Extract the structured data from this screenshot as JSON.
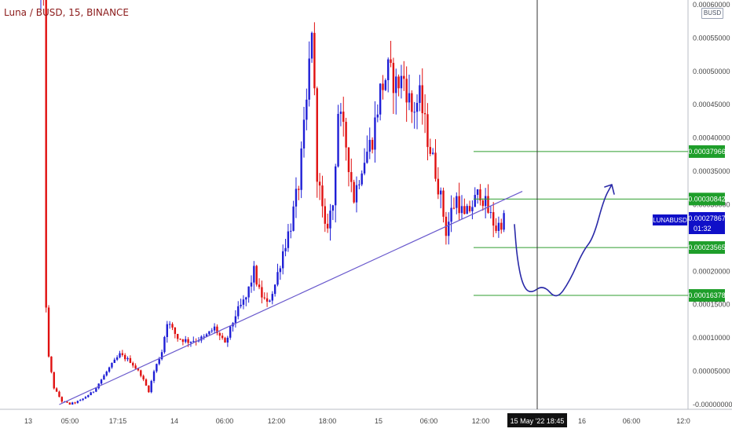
{
  "header": {
    "title": "Luna / BUSD, 15, BINANCE",
    "quote_badge": "BUSD"
  },
  "colors": {
    "up": "#1f1fd6",
    "down": "#e01010",
    "trendline": "#6a5acd",
    "levels": "#2f9e2f",
    "level_label_bg": "#1e9e2a",
    "price_label_bg": "#1010c8",
    "projection": "#2a2aa8",
    "crosshair": "#333333",
    "axis_text": "#444444"
  },
  "chart_data": {
    "type": "candlestick",
    "symbol": "Luna / BUSD",
    "interval": "15",
    "exchange": "BINANCE",
    "y_range": [
      -3e-10,
      0.0006
    ],
    "y_ticks": [
      {
        "value": 0.0006,
        "label": "0.00060000"
      },
      {
        "value": 0.00055,
        "label": "0.00055000"
      },
      {
        "value": 0.0005,
        "label": "0.00050000"
      },
      {
        "value": 0.00045,
        "label": "0.00045000"
      },
      {
        "value": 0.0004,
        "label": "0.00040000"
      },
      {
        "value": 0.00035,
        "label": "0.00035000"
      },
      {
        "value": 0.0003,
        "label": "0.00030000"
      },
      {
        "value": 0.0002,
        "label": "0.00020000"
      },
      {
        "value": 0.00015,
        "label": "0.00015000"
      },
      {
        "value": 0.0001,
        "label": "0.00010000"
      },
      {
        "value": 5e-05,
        "label": "0.00005000"
      },
      {
        "value": -3e-10,
        "label": "-0.00000000"
      }
    ],
    "x_ticks": [
      "13",
      "05:00",
      "17:15",
      "14",
      "06:00",
      "12:00",
      "18:00",
      "15",
      "06:00",
      "12:00",
      "16",
      "06:00",
      "12:0"
    ],
    "crosshair_x_label": "15 May '22   18:45",
    "horizontal_levels": [
      {
        "value": 0.00037966,
        "label": "0.00037966"
      },
      {
        "value": 0.00030842,
        "label": "0.00030842"
      },
      {
        "value": 0.00023565,
        "label": "0.00023565"
      },
      {
        "value": 0.00016378,
        "label": "0.00016378"
      }
    ],
    "current_price": {
      "symbol": "LUNABUSD",
      "value": "0.00027867",
      "countdown": "01:32"
    },
    "price_path": [
      {
        "bar": 0,
        "price": 0.00062
      },
      {
        "bar": 1,
        "price": 0.0006
      },
      {
        "bar": 2,
        "price": 0.00015
      },
      {
        "bar": 3,
        "price": 7e-05
      },
      {
        "bar": 5,
        "price": 2.5e-05
      },
      {
        "bar": 8,
        "price": 5e-06
      },
      {
        "bar": 11,
        "price": 5e-07
      },
      {
        "bar": 15,
        "price": 6e-06
      },
      {
        "bar": 20,
        "price": 2e-05
      },
      {
        "bar": 26,
        "price": 5.5e-05
      },
      {
        "bar": 30,
        "price": 7.5e-05
      },
      {
        "bar": 34,
        "price": 6.5e-05
      },
      {
        "bar": 38,
        "price": 4.5e-05
      },
      {
        "bar": 41,
        "price": 2e-05
      },
      {
        "bar": 43,
        "price": 5e-05
      },
      {
        "bar": 46,
        "price": 8e-05
      },
      {
        "bar": 48,
        "price": 0.000125
      },
      {
        "bar": 52,
        "price": 0.0001
      },
      {
        "bar": 56,
        "price": 9.5e-05
      },
      {
        "bar": 62,
        "price": 0.0001
      },
      {
        "bar": 66,
        "price": 0.000115
      },
      {
        "bar": 70,
        "price": 9e-05
      },
      {
        "bar": 74,
        "price": 0.000135
      },
      {
        "bar": 78,
        "price": 0.00016
      },
      {
        "bar": 81,
        "price": 0.0002
      },
      {
        "bar": 83,
        "price": 0.00017
      },
      {
        "bar": 86,
        "price": 0.00015
      },
      {
        "bar": 89,
        "price": 0.00018
      },
      {
        "bar": 92,
        "price": 0.00023
      },
      {
        "bar": 95,
        "price": 0.00027
      },
      {
        "bar": 98,
        "price": 0.00033
      },
      {
        "bar": 101,
        "price": 0.00045
      },
      {
        "bar": 103,
        "price": 0.00057
      },
      {
        "bar": 105,
        "price": 0.00035
      },
      {
        "bar": 108,
        "price": 0.00026
      },
      {
        "bar": 111,
        "price": 0.0003
      },
      {
        "bar": 113,
        "price": 0.00044
      },
      {
        "bar": 116,
        "price": 0.00039
      },
      {
        "bar": 119,
        "price": 0.00031
      },
      {
        "bar": 122,
        "price": 0.00036
      },
      {
        "bar": 126,
        "price": 0.0004
      },
      {
        "bar": 129,
        "price": 0.00047
      },
      {
        "bar": 132,
        "price": 0.0005
      },
      {
        "bar": 135,
        "price": 0.00048
      },
      {
        "bar": 138,
        "price": 0.00049
      },
      {
        "bar": 141,
        "price": 0.00044
      },
      {
        "bar": 144,
        "price": 0.00046
      },
      {
        "bar": 147,
        "price": 0.0004
      },
      {
        "bar": 150,
        "price": 0.00035
      },
      {
        "bar": 152,
        "price": 0.00031
      },
      {
        "bar": 154,
        "price": 0.00026
      },
      {
        "bar": 156,
        "price": 0.00029
      },
      {
        "bar": 158,
        "price": 0.00031
      },
      {
        "bar": 161,
        "price": 0.00028
      },
      {
        "bar": 164,
        "price": 0.0003
      },
      {
        "bar": 167,
        "price": 0.00032
      },
      {
        "bar": 170,
        "price": 0.00029
      },
      {
        "bar": 173,
        "price": 0.000265
      },
      {
        "bar": 176,
        "price": 0.00027867
      }
    ],
    "trendline": {
      "from": {
        "bar": 7,
        "price": 0.0
      },
      "to": {
        "bar": 183,
        "price": 0.00032
      }
    },
    "projection": [
      {
        "bar": 180,
        "price": 0.00027
      },
      {
        "bar": 181,
        "price": 0.00022
      },
      {
        "bar": 183,
        "price": 0.00018
      },
      {
        "bar": 186,
        "price": 0.000166
      },
      {
        "bar": 191,
        "price": 0.00018
      },
      {
        "bar": 196,
        "price": 0.000157
      },
      {
        "bar": 201,
        "price": 0.000185
      },
      {
        "bar": 206,
        "price": 0.00023
      },
      {
        "bar": 210,
        "price": 0.00025
      },
      {
        "bar": 214,
        "price": 0.00030842
      },
      {
        "bar": 217,
        "price": 0.00033
      }
    ]
  }
}
